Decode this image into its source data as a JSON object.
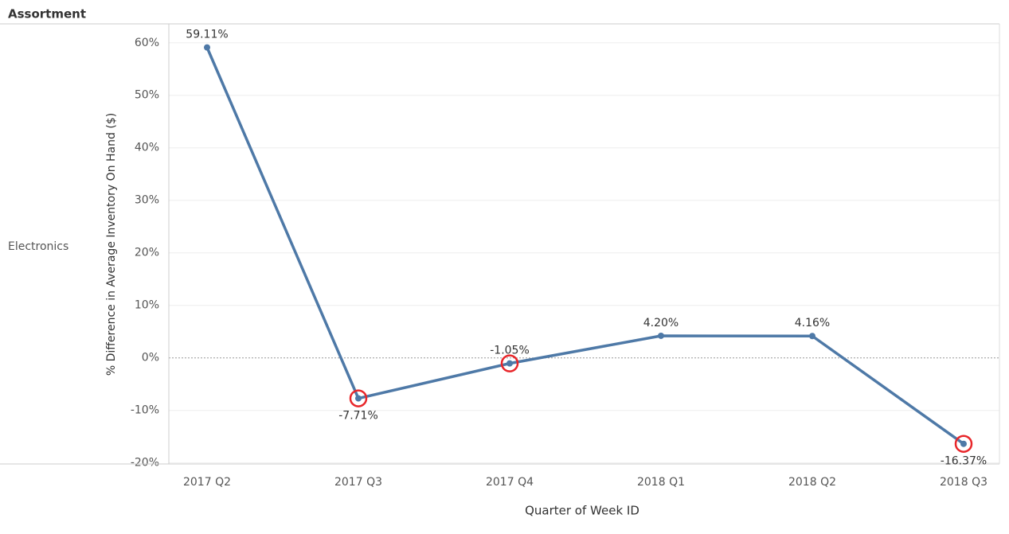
{
  "chart_data": {
    "type": "line",
    "row_header": "Assortment",
    "row_label": "Electronics",
    "x_label": "Quarter of Week ID",
    "y_label": "% Difference in Average Inventory On Hand ($)",
    "categories": [
      "2017 Q2",
      "2017 Q3",
      "2017 Q4",
      "2018 Q1",
      "2018 Q2",
      "2018 Q3"
    ],
    "series": [
      {
        "values": [
          59.11,
          -7.71,
          -1.05,
          4.2,
          4.16,
          -16.37
        ],
        "value_labels": [
          "59.11%",
          "-7.71%",
          "-1.05%",
          "4.20%",
          "4.16%",
          "-16.37%"
        ],
        "color": "#4e79a7"
      }
    ],
    "highlighted": [
      1,
      2,
      5
    ],
    "highlight_color": "#e8262a",
    "ylim": [
      -20.2,
      63.6
    ],
    "yticks": [
      {
        "value": -20,
        "label": "-20%"
      },
      {
        "value": -10,
        "label": "-10%"
      },
      {
        "value": 0,
        "label": "0%"
      },
      {
        "value": 10,
        "label": "10%"
      },
      {
        "value": 20,
        "label": "20%"
      },
      {
        "value": 30,
        "label": "30%"
      },
      {
        "value": 40,
        "label": "40%"
      },
      {
        "value": 50,
        "label": "50%"
      },
      {
        "value": 60,
        "label": "60%"
      }
    ],
    "grid": true
  }
}
